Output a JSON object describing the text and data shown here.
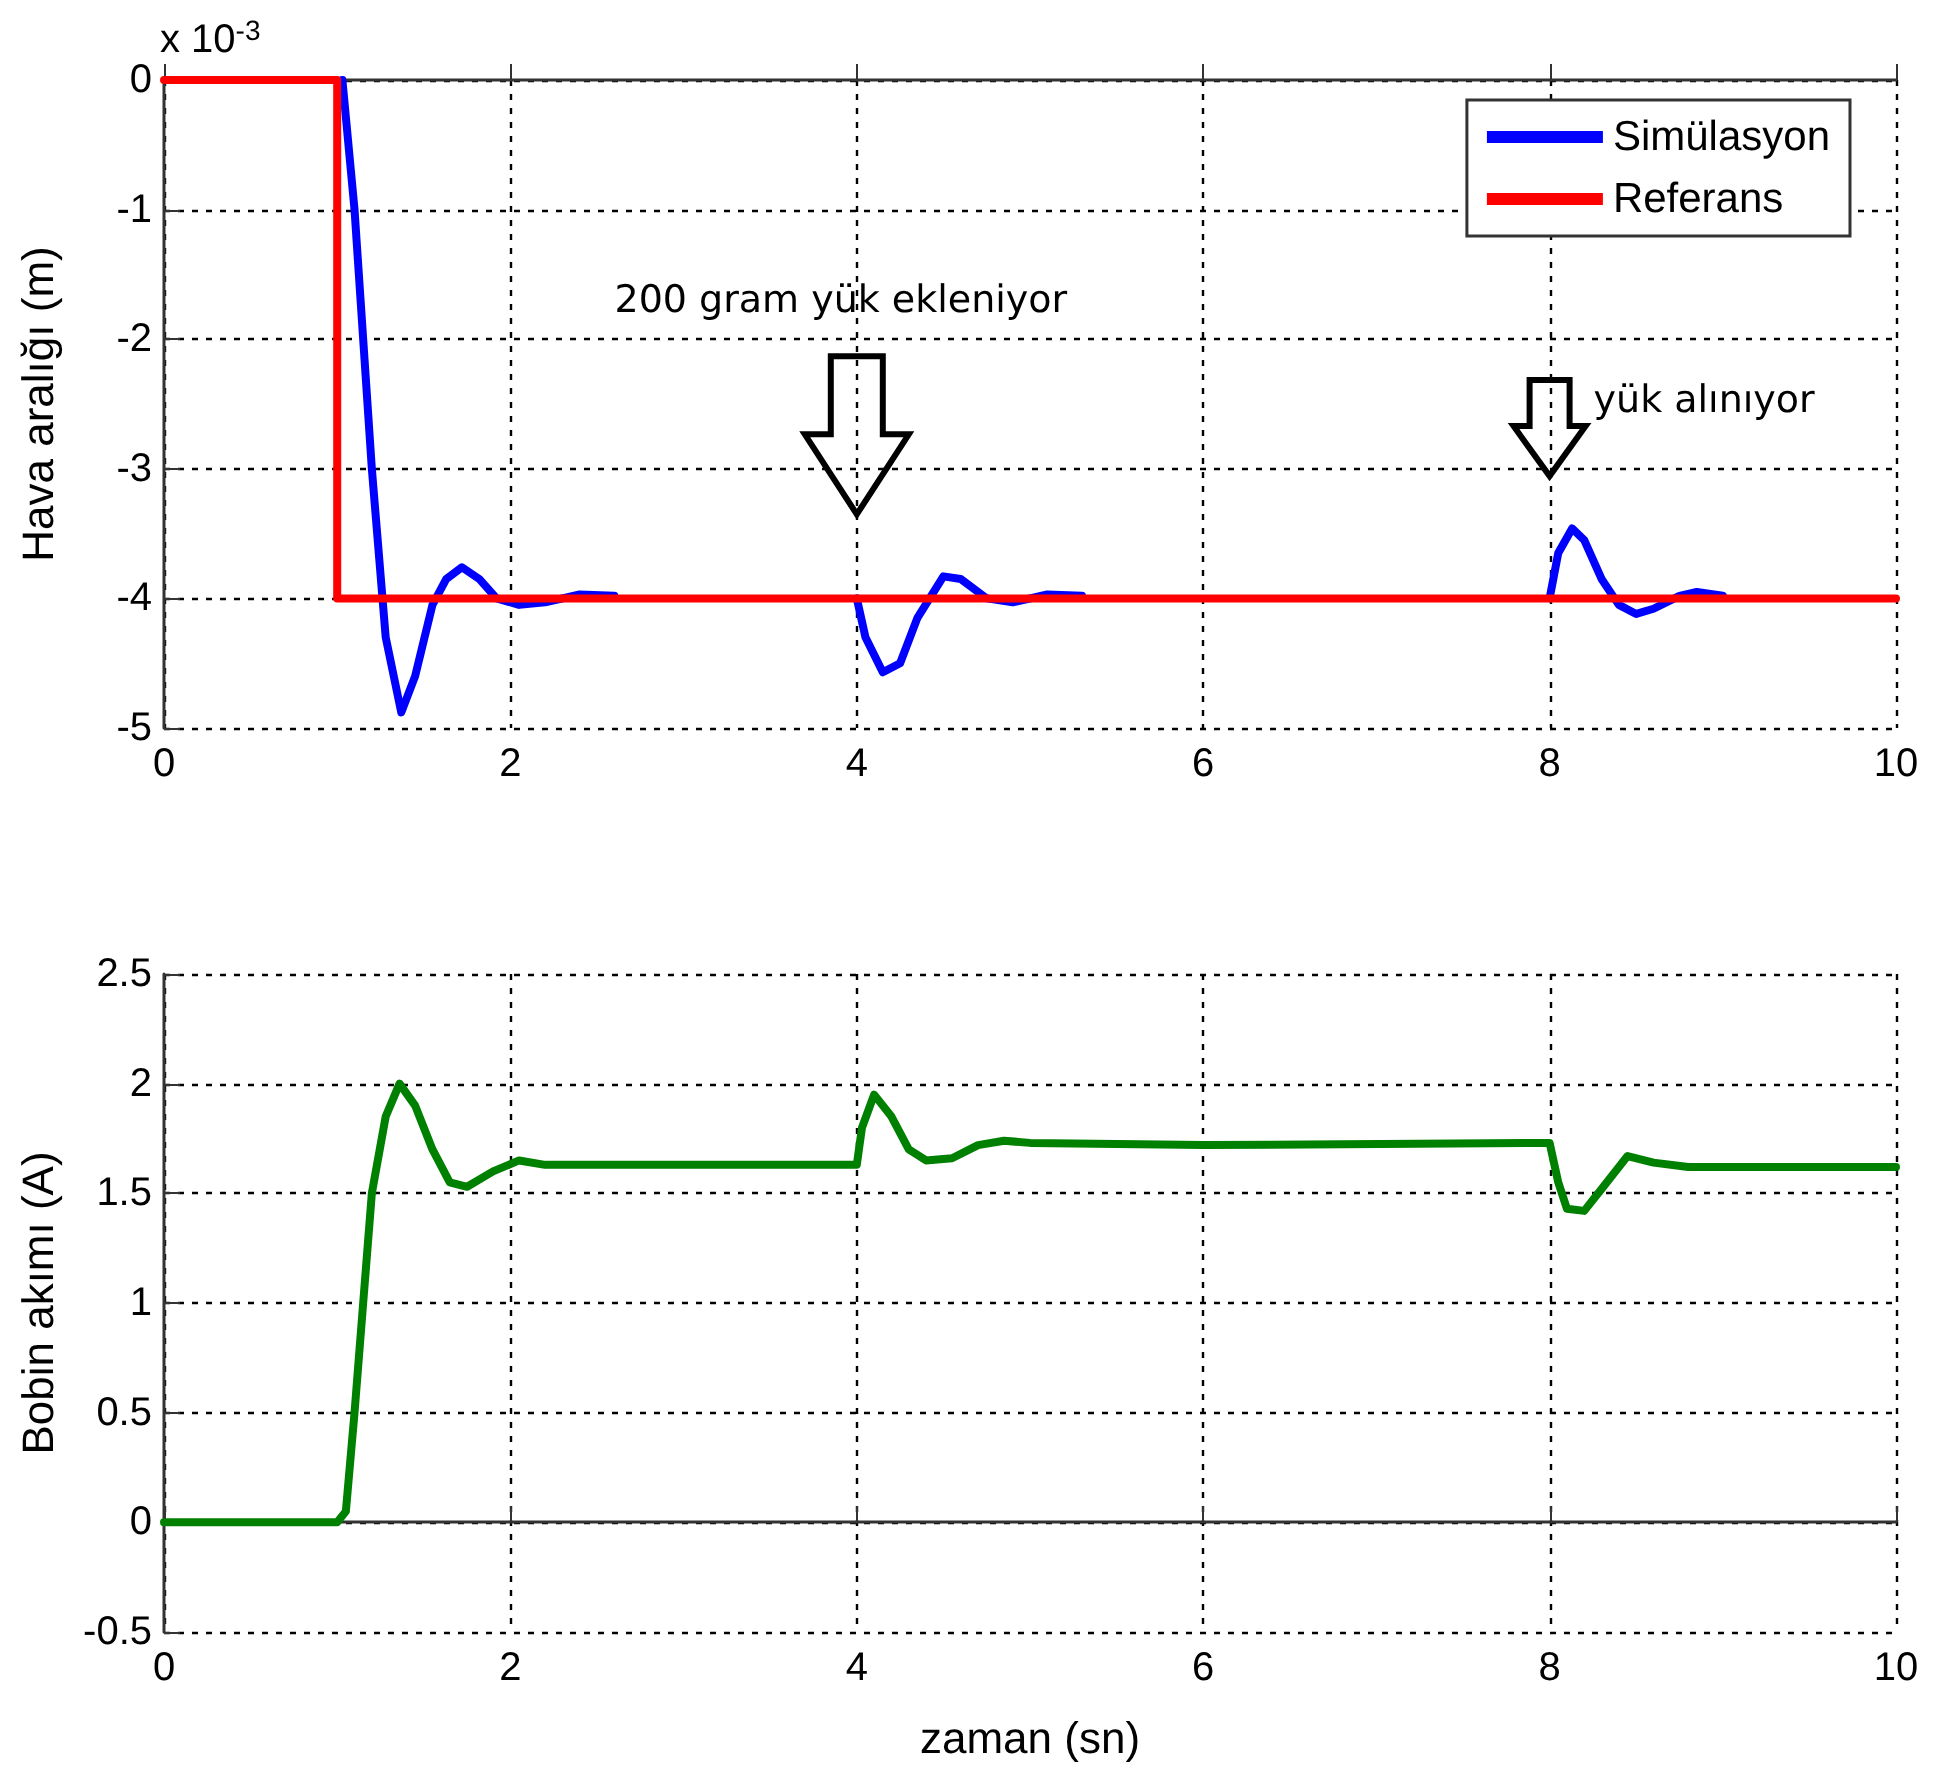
{
  "chart_data": [
    {
      "type": "line",
      "ylabel": "Hava aralığı (m)",
      "xlim": [
        0,
        10
      ],
      "xticks": [
        0,
        2,
        4,
        6,
        8,
        10
      ],
      "ylim": [
        -5,
        0
      ],
      "yticks": [
        -5,
        -4,
        -3,
        -2,
        -1,
        0
      ],
      "grid": true,
      "legend": "top right",
      "marker": "none",
      "annotations": [
        "x 10$^{-3}$",
        "200 gram yük ekleniyor",
        "yük alınıyor"
      ],
      "series": [
        {
          "name": "Simülasyon",
          "color": "#0000ff",
          "x": [
            1.03,
            1.1,
            1.2,
            1.28,
            1.37,
            1.45,
            1.55,
            1.63,
            1.72,
            1.82,
            1.92,
            2.05,
            2.2,
            2.4,
            2.6,
            3.0,
            4.0,
            4.05,
            4.15,
            4.25,
            4.35,
            4.5,
            4.6,
            4.75,
            4.9,
            5.1,
            5.3,
            6.0,
            8.0,
            8.05,
            8.13,
            8.2,
            8.3,
            8.4,
            8.5,
            8.6,
            8.75,
            8.85,
            9.0
          ],
          "values": [
            0,
            -1,
            -3,
            -4.3,
            -4.88,
            -4.6,
            -4.05,
            -3.85,
            -3.76,
            -3.85,
            -4.0,
            -4.05,
            -4.03,
            -3.97,
            -3.98,
            null,
            -4.0,
            -4.3,
            -4.57,
            -4.5,
            -4.15,
            -3.83,
            -3.85,
            -4.0,
            -4.03,
            -3.97,
            -3.98,
            null,
            -4.0,
            -3.65,
            -3.46,
            -3.55,
            -3.85,
            -4.05,
            -4.12,
            -4.08,
            -3.98,
            -3.95,
            -3.98
          ]
        },
        {
          "name": "Referans",
          "color": "#ff0000",
          "x": [
            0,
            1,
            1,
            10
          ],
          "values": [
            0,
            0,
            -4,
            -4
          ]
        }
      ]
    },
    {
      "type": "line",
      "xlabel": "zaman (sn)",
      "ylabel": "Bobin akımı (A)",
      "xlim": [
        0,
        10
      ],
      "xticks": [
        0,
        2,
        4,
        6,
        8,
        10
      ],
      "ylim": [
        -0.5,
        2.5
      ],
      "yticks": [
        -0.5,
        0,
        0.5,
        1,
        1.5,
        2,
        2.5
      ],
      "grid": true,
      "marker": "none",
      "series": [
        {
          "color": "#008000",
          "x": [
            0,
            1.0,
            1.05,
            1.1,
            1.15,
            1.2,
            1.28,
            1.36,
            1.45,
            1.55,
            1.65,
            1.75,
            1.9,
            2.05,
            2.2,
            4.0,
            4.03,
            4.1,
            4.2,
            4.3,
            4.4,
            4.55,
            4.7,
            4.85,
            5.0,
            6.0,
            8.0,
            8.05,
            8.1,
            8.2,
            8.3,
            8.45,
            8.6,
            8.8,
            9.0,
            10
          ],
          "values": [
            0,
            0,
            0.05,
            0.5,
            1.0,
            1.5,
            1.85,
            2.0,
            1.9,
            1.7,
            1.55,
            1.53,
            1.6,
            1.65,
            1.63,
            1.63,
            1.8,
            1.95,
            1.85,
            1.7,
            1.65,
            1.66,
            1.72,
            1.74,
            1.73,
            1.72,
            1.73,
            1.55,
            1.43,
            1.42,
            1.52,
            1.67,
            1.64,
            1.62,
            1.62,
            1.62
          ]
        }
      ]
    }
  ]
}
